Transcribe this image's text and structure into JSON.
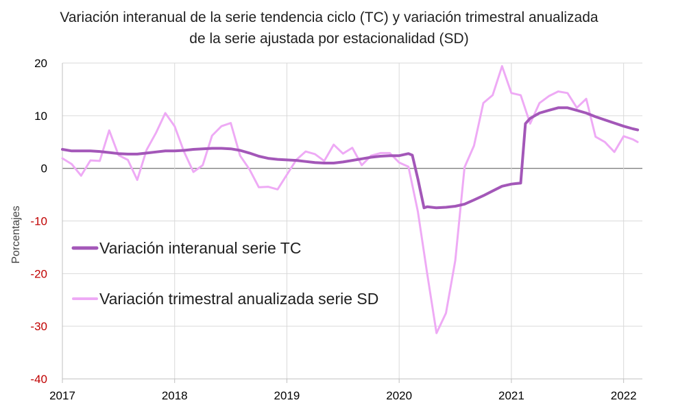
{
  "chart_data": {
    "type": "line",
    "title_line1": "Variación interanual de la serie tendencia ciclo (TC) y variación trimestral anualizada",
    "title_line2": "de la serie ajustada por estacionalidad (SD)",
    "ylabel": "Porcentajes",
    "xlabel": "",
    "ylim": [
      -40,
      20
    ],
    "xlim": [
      2017,
      2022.167
    ],
    "y_ticks": [
      20,
      10,
      0,
      -10,
      -20,
      -30,
      -40
    ],
    "x_ticks": [
      2017,
      2018,
      2019,
      2020,
      2021,
      2022
    ],
    "grid": true,
    "legend_position": "center-left",
    "colors": {
      "positive_tick": "#000000",
      "negative_tick": "#c00000",
      "grid": "#d9d9d9",
      "zero_line": "#808080"
    },
    "series": [
      {
        "name": "Variación interanual serie TC",
        "color": "#a357b8",
        "width": 4,
        "x": [
          2017.0,
          2017.083,
          2017.167,
          2017.25,
          2017.333,
          2017.417,
          2017.5,
          2017.583,
          2017.667,
          2017.75,
          2017.833,
          2017.917,
          2018.0,
          2018.083,
          2018.167,
          2018.25,
          2018.333,
          2018.417,
          2018.5,
          2018.583,
          2018.667,
          2018.75,
          2018.833,
          2018.917,
          2019.0,
          2019.083,
          2019.167,
          2019.25,
          2019.333,
          2019.417,
          2019.5,
          2019.583,
          2019.667,
          2019.75,
          2019.833,
          2019.917,
          2020.0,
          2020.083,
          2020.117,
          2020.167,
          2020.222,
          2020.25,
          2020.333,
          2020.417,
          2020.5,
          2020.583,
          2020.667,
          2020.75,
          2020.833,
          2020.917,
          2021.0,
          2021.042,
          2021.083,
          2021.125,
          2021.167,
          2021.25,
          2021.333,
          2021.417,
          2021.5,
          2021.583,
          2021.667,
          2021.75,
          2021.833,
          2021.917,
          2022.0,
          2022.083,
          2022.125
        ],
        "values": [
          3.6,
          3.3,
          3.3,
          3.3,
          3.2,
          3.0,
          2.8,
          2.7,
          2.7,
          2.9,
          3.1,
          3.3,
          3.3,
          3.4,
          3.6,
          3.7,
          3.8,
          3.8,
          3.7,
          3.4,
          2.9,
          2.3,
          1.9,
          1.7,
          1.6,
          1.5,
          1.3,
          1.1,
          1.0,
          1.0,
          1.2,
          1.5,
          1.8,
          2.1,
          2.3,
          2.4,
          2.4,
          2.8,
          2.5,
          -2.0,
          -7.5,
          -7.3,
          -7.5,
          -7.4,
          -7.2,
          -6.8,
          -6.0,
          -5.2,
          -4.3,
          -3.4,
          -3.0,
          -2.9,
          -2.8,
          8.5,
          9.5,
          10.5,
          11.0,
          11.5,
          11.5,
          11.0,
          10.5,
          9.8,
          9.2,
          8.6,
          8.0,
          7.5,
          7.3
        ]
      },
      {
        "name": "Variación trimestral anualizada serie SD",
        "color": "#eeaaf5",
        "width": 3,
        "x": [
          2017.0,
          2017.083,
          2017.167,
          2017.25,
          2017.333,
          2017.417,
          2017.5,
          2017.583,
          2017.667,
          2017.75,
          2017.833,
          2017.917,
          2018.0,
          2018.083,
          2018.167,
          2018.25,
          2018.333,
          2018.417,
          2018.5,
          2018.583,
          2018.667,
          2018.75,
          2018.833,
          2018.917,
          2019.0,
          2019.083,
          2019.167,
          2019.25,
          2019.333,
          2019.417,
          2019.5,
          2019.583,
          2019.667,
          2019.75,
          2019.833,
          2019.917,
          2020.0,
          2020.083,
          2020.167,
          2020.25,
          2020.333,
          2020.417,
          2020.5,
          2020.583,
          2020.667,
          2020.75,
          2020.833,
          2020.917,
          2021.0,
          2021.083,
          2021.167,
          2021.25,
          2021.333,
          2021.417,
          2021.5,
          2021.583,
          2021.667,
          2021.75,
          2021.833,
          2021.917,
          2022.0,
          2022.083,
          2022.125
        ],
        "values": [
          1.9,
          0.8,
          -1.4,
          1.5,
          1.4,
          7.2,
          2.5,
          1.6,
          -2.2,
          3.5,
          6.7,
          10.5,
          8.0,
          3.2,
          -0.7,
          0.6,
          6.2,
          8.0,
          8.6,
          2.4,
          -0.2,
          -3.6,
          -3.5,
          -4.0,
          -1.2,
          1.6,
          3.2,
          2.7,
          1.4,
          4.5,
          2.8,
          3.9,
          0.6,
          2.4,
          2.9,
          2.9,
          1.1,
          0.3,
          -8.2,
          -20.0,
          -31.3,
          -27.5,
          -17.5,
          0.2,
          4.3,
          12.4,
          13.9,
          19.4,
          14.3,
          13.9,
          8.5,
          12.4,
          13.7,
          14.6,
          14.3,
          11.5,
          13.2,
          6.0,
          5.0,
          3.1,
          6.1,
          5.5,
          5.0
        ]
      }
    ]
  }
}
